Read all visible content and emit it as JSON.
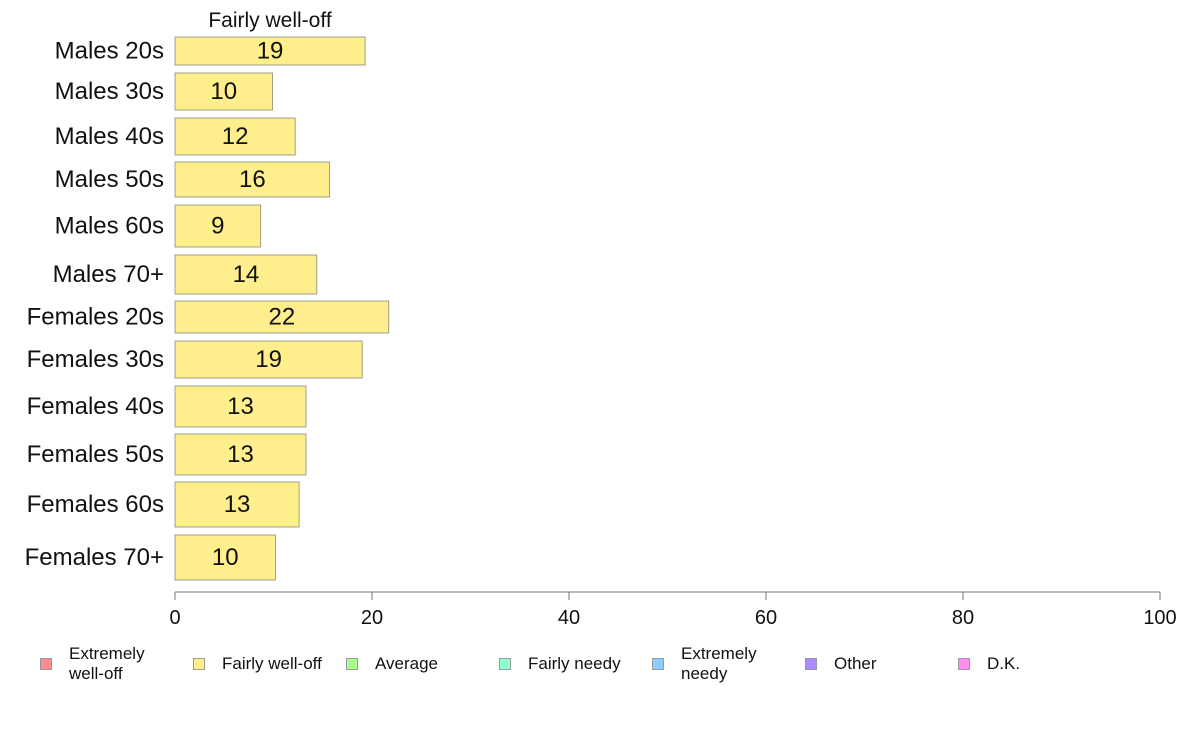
{
  "chart_data": {
    "type": "bar",
    "orientation": "horizontal",
    "title": "Fairly well-off",
    "categories": [
      "Males 20s",
      "Males 30s",
      "Males 40s",
      "Males 50s",
      "Males 60s",
      "Males 70+",
      "Females 20s",
      "Females 30s",
      "Females 40s",
      "Females 50s",
      "Females 60s",
      "Females 70+"
    ],
    "values": [
      19.3,
      9.9,
      12.2,
      15.7,
      8.7,
      14.4,
      21.7,
      19.0,
      13.3,
      13.3,
      12.6,
      10.2
    ],
    "data_labels": [
      "19",
      "10",
      "12",
      "16",
      "9",
      "14",
      "22",
      "19",
      "13",
      "13",
      "13",
      "10"
    ],
    "xlim": [
      0,
      100
    ],
    "x_ticks": [
      "0",
      "20",
      "40",
      "60",
      "80",
      "100"
    ],
    "grid": false,
    "bar_color": "#ffee8c",
    "legend_position": "bottom",
    "legend": [
      {
        "label": "Extremely well-off",
        "color": "#ff8c8c"
      },
      {
        "label": "Fairly well-off",
        "color": "#ffee8c"
      },
      {
        "label": "Average",
        "color": "#aaff8c"
      },
      {
        "label": "Fairly needy",
        "color": "#8cffcc"
      },
      {
        "label": "Extremely needy",
        "color": "#8cccff"
      },
      {
        "label": "Other",
        "color": "#aa8cff"
      },
      {
        "label": "D.K.",
        "color": "#ff8cee"
      }
    ]
  }
}
